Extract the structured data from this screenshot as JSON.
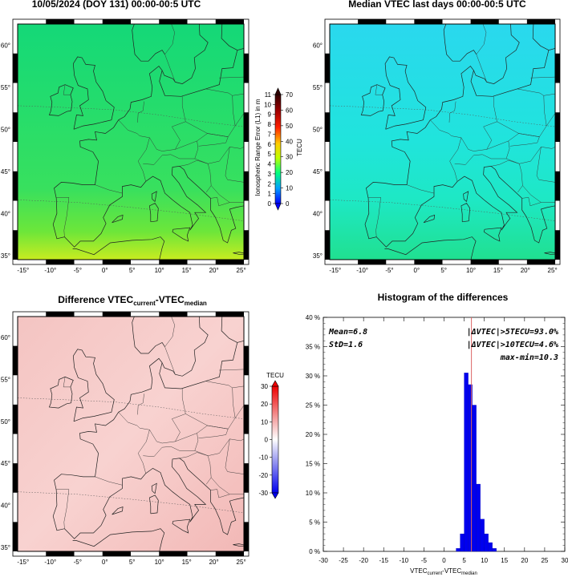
{
  "panels": {
    "current": {
      "title": "10/05/2024 (DOY 131) 00:00-00:5 UTC",
      "colorbar": {
        "left_label": "Ionospheric Range Error (L1) in m",
        "left_ticks": [
          "0",
          "1",
          "2",
          "3",
          "4",
          "5",
          "6",
          "7",
          "8",
          "9",
          "10",
          "11"
        ],
        "right_label": "TECU",
        "right_ticks": [
          "0",
          "10",
          "20",
          "30",
          "40",
          "50",
          "60",
          "70"
        ]
      }
    },
    "median": {
      "title": "Median VTEC last  days 00:00-00:5 UTC"
    },
    "difference": {
      "title_prefix": "Difference VTEC",
      "title_sub1": "current",
      "title_mid": "-VTEC",
      "title_sub2": "median",
      "colorbar": {
        "label": "TECU",
        "ticks": [
          "30",
          "20",
          "10",
          "0",
          "-10",
          "-20",
          "-30"
        ]
      }
    },
    "histogram": {
      "title": "Histogram of the differences",
      "stats": {
        "mean": "Mean=6.8",
        "std": "StD=1.6",
        "gt5": "|ΔVTEC|>5TECU=93.0%",
        "gt10": "|ΔVTEC|>10TECU=4.6%",
        "maxmin": "max-min=10.3"
      },
      "xlabel_base": "VTEC",
      "xlabel_sub1": "current",
      "xlabel_mid": "-VTEC",
      "xlabel_sub2": "median"
    }
  },
  "map": {
    "lon_ticks": [
      "-15°",
      "-10°",
      "-5°",
      "0°",
      "5°",
      "10°",
      "15°",
      "20°",
      "25°"
    ],
    "lat_ticks": [
      "35°",
      "40°",
      "45°",
      "50°",
      "55°",
      "60°"
    ]
  },
  "colors": {
    "histogram_bar": "#0000ee",
    "mean_line": "#dd6666",
    "difference_fill": "#f6c6c6"
  },
  "chart_data": [
    {
      "type": "heatmap",
      "title": "10/05/2024 (DOY 131) 00:00-00:5 UTC",
      "description_scale": "TECU 0-70",
      "x_range": [
        -16,
        25.5
      ],
      "y_range": [
        34.5,
        62.5
      ],
      "colorbar_range": [
        0,
        70
      ]
    },
    {
      "type": "heatmap",
      "title": "Median VTEC last  days 00:00-00:5 UTC",
      "x_range": [
        -16,
        25.5
      ],
      "y_range": [
        34.5,
        62.5
      ],
      "colorbar_range": [
        0,
        70
      ]
    },
    {
      "type": "heatmap",
      "title": "Difference VTEC current - VTEC median",
      "x_range": [
        -16,
        25.5
      ],
      "y_range": [
        34.5,
        62.5
      ],
      "colorbar_range": [
        -30,
        30
      ]
    },
    {
      "type": "bar",
      "title": "Histogram of the differences",
      "xlabel": "VTEC current - VTEC median",
      "xlim": [
        -30,
        30
      ],
      "ylim": [
        0,
        40
      ],
      "x_ticks": [
        -30,
        -25,
        -20,
        -15,
        -10,
        -5,
        0,
        5,
        10,
        15,
        20,
        25,
        30
      ],
      "y_ticks": [
        "0 %",
        "5 %",
        "10 %",
        "15 %",
        "20 %",
        "25 %",
        "30 %",
        "35 %",
        "40 %"
      ],
      "bin_width": 1,
      "bins": [
        {
          "x": 3,
          "value": 0.5
        },
        {
          "x": 4,
          "value": 3.0
        },
        {
          "x": 5,
          "value": 30.5
        },
        {
          "x": 6,
          "value": 28.5
        },
        {
          "x": 7,
          "value": 25.0
        },
        {
          "x": 8,
          "value": 11.5
        },
        {
          "x": 9,
          "value": 5.5
        },
        {
          "x": 10,
          "value": 3.0
        },
        {
          "x": 11,
          "value": 1.5
        },
        {
          "x": 12,
          "value": 0.5
        }
      ],
      "mean_line": 6.8
    }
  ]
}
